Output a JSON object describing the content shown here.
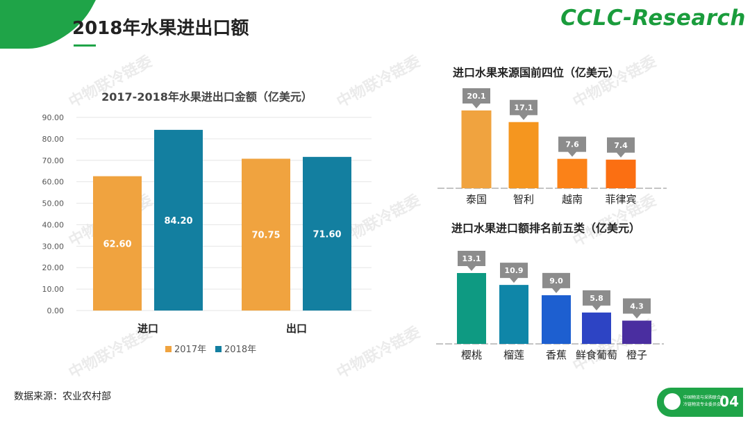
{
  "page": {
    "title": "2018年水果进出口额",
    "brand": "CCLC-Research",
    "watermark": "中物联冷链委",
    "source": "数据来源：农业农村部",
    "page_number": "04",
    "logo_line1": "中国物流与采购联合会",
    "logo_line2": "冷链物流专业委员会",
    "colors": {
      "green": "#1fa448",
      "orange": "#f0a33f",
      "teal": "#137fa0"
    }
  },
  "chart_data": [
    {
      "id": "main",
      "type": "bar",
      "title": "2017-2018年水果进出口金额（亿美元）",
      "categories": [
        "进口",
        "出口"
      ],
      "series": [
        {
          "name": "2017年",
          "color": "#f0a33f",
          "values": [
            62.6,
            70.75
          ],
          "labels": [
            "62.60",
            "70.75"
          ]
        },
        {
          "name": "2018年",
          "color": "#137fa0",
          "values": [
            84.2,
            71.6
          ],
          "labels": [
            "84.20",
            "71.60"
          ]
        }
      ],
      "yticks": [
        "0.00",
        "10.00",
        "20.00",
        "30.00",
        "40.00",
        "50.00",
        "60.00",
        "70.00",
        "80.00",
        "90.00"
      ],
      "ylim": [
        0,
        90
      ]
    },
    {
      "id": "sources",
      "type": "bar",
      "title": "进口水果来源国前四位（亿美元）",
      "categories": [
        "泰国",
        "智利",
        "越南",
        "菲律宾"
      ],
      "values": [
        20.1,
        17.1,
        7.6,
        7.4
      ],
      "labels": [
        "20.1",
        "17.1",
        "7.6",
        "7.4"
      ],
      "colors": [
        "#f0a33f",
        "#f5961f",
        "#fb8218",
        "#fb6f12"
      ]
    },
    {
      "id": "top5",
      "type": "bar",
      "title": "进口水果进口额排名前五类（亿美元）",
      "categories": [
        "樱桃",
        "榴莲",
        "香蕉",
        "鲜食葡萄",
        "橙子"
      ],
      "values": [
        13.1,
        10.9,
        9.0,
        5.8,
        4.3
      ],
      "labels": [
        "13.1",
        "10.9",
        "9.0",
        "5.8",
        "4.3"
      ],
      "colors": [
        "#0e9a82",
        "#0f86a8",
        "#1d5fd0",
        "#2d44c4",
        "#4a2ea0"
      ]
    }
  ]
}
